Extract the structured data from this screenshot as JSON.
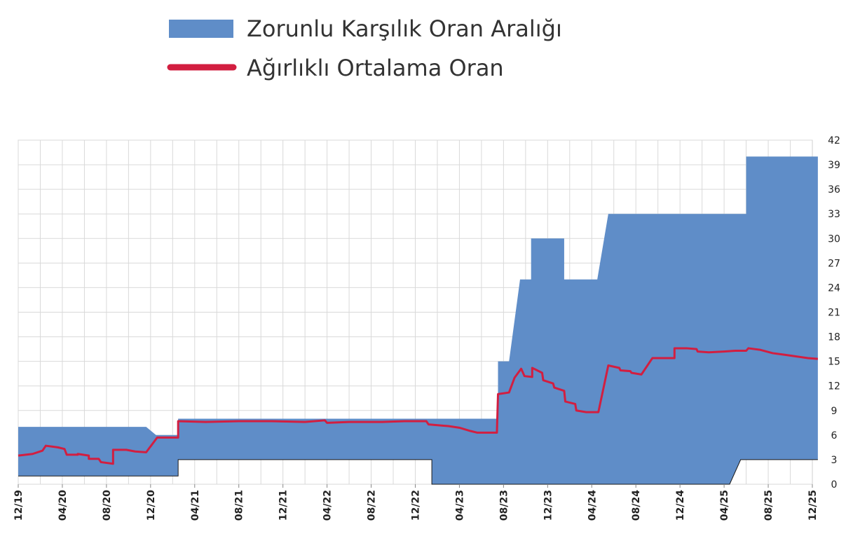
{
  "chart_data": {
    "type": "area",
    "title": "",
    "xlabel": "",
    "ylabel": "",
    "ylim": [
      0,
      42
    ],
    "yticks": [
      0,
      3,
      6,
      9,
      12,
      15,
      18,
      21,
      24,
      27,
      30,
      33,
      36,
      39,
      42
    ],
    "xticks": [
      "12/19",
      "04/20",
      "08/20",
      "12/20",
      "04/21",
      "08/21",
      "12/21",
      "04/22",
      "08/22",
      "12/22",
      "04/23",
      "08/23",
      "12/23",
      "04/24",
      "08/24",
      "12/24",
      "04/25",
      "08/25",
      "12/25"
    ],
    "grid": true,
    "legend_position": "top",
    "legend": [
      {
        "label": "Zorunlu Karşılık Oran Aralığı",
        "symbol": "rect",
        "color": "#5f8dc8"
      },
      {
        "label": "Ağırlıklı Ortalama Oran",
        "symbol": "line",
        "color": "#d21e40"
      }
    ],
    "series": [
      {
        "name": "Zorunlu Karşılık Oran Aralığı",
        "kind": "band",
        "color": "#5f8dc8",
        "upper": [
          [
            0,
            7
          ],
          [
            11.6,
            7
          ],
          [
            12.5,
            6
          ],
          [
            14.5,
            6
          ],
          [
            14.5,
            8
          ],
          [
            43.5,
            8
          ],
          [
            43.5,
            15
          ],
          [
            44.5,
            15
          ],
          [
            45.5,
            25
          ],
          [
            46.5,
            25
          ],
          [
            46.5,
            30
          ],
          [
            49.5,
            30
          ],
          [
            49.5,
            25
          ],
          [
            52.5,
            25
          ],
          [
            53.5,
            33
          ],
          [
            66,
            33
          ],
          [
            66,
            40
          ],
          [
            72.5,
            40
          ]
        ],
        "lower": [
          [
            0,
            1
          ],
          [
            14.5,
            1
          ],
          [
            14.5,
            3
          ],
          [
            37.5,
            3
          ],
          [
            37.5,
            0
          ],
          [
            64.5,
            0
          ],
          [
            65.5,
            3
          ],
          [
            72.5,
            3
          ]
        ]
      },
      {
        "name": "Ağırlıklı Ortalama Oran",
        "kind": "line",
        "color": "#d21e40",
        "points": [
          [
            0,
            3.5
          ],
          [
            1.3,
            3.7
          ],
          [
            2.2,
            4.1
          ],
          [
            2.5,
            4.7
          ],
          [
            3.6,
            4.5
          ],
          [
            4.2,
            4.3
          ],
          [
            4.4,
            3.6
          ],
          [
            5.4,
            3.6
          ],
          [
            5.4,
            3.7
          ],
          [
            6.4,
            3.5
          ],
          [
            6.4,
            3.1
          ],
          [
            7.3,
            3.1
          ],
          [
            7.5,
            2.7
          ],
          [
            8.6,
            2.5
          ],
          [
            8.6,
            4.2
          ],
          [
            9.8,
            4.2
          ],
          [
            10.6,
            4.0
          ],
          [
            11.6,
            3.9
          ],
          [
            12.6,
            5.7
          ],
          [
            14.5,
            5.7
          ],
          [
            14.5,
            7.7
          ],
          [
            17,
            7.6
          ],
          [
            20,
            7.7
          ],
          [
            23,
            7.7
          ],
          [
            26,
            7.6
          ],
          [
            27.8,
            7.8
          ],
          [
            28,
            7.5
          ],
          [
            30,
            7.6
          ],
          [
            33,
            7.6
          ],
          [
            35,
            7.7
          ],
          [
            37,
            7.7
          ],
          [
            37.2,
            7.3
          ],
          [
            39,
            7.1
          ],
          [
            40,
            6.9
          ],
          [
            41,
            6.5
          ],
          [
            41.6,
            6.3
          ],
          [
            43.4,
            6.3
          ],
          [
            43.5,
            11.0
          ],
          [
            44.5,
            11.2
          ],
          [
            45,
            13.0
          ],
          [
            45.6,
            14.1
          ],
          [
            45.9,
            13.2
          ],
          [
            46.6,
            13.1
          ],
          [
            46.6,
            14.2
          ],
          [
            47.5,
            13.6
          ],
          [
            47.6,
            12.7
          ],
          [
            48.5,
            12.3
          ],
          [
            48.6,
            11.8
          ],
          [
            49.5,
            11.4
          ],
          [
            49.6,
            10.1
          ],
          [
            50.5,
            9.8
          ],
          [
            50.6,
            9.0
          ],
          [
            51.5,
            8.8
          ],
          [
            52.6,
            8.8
          ],
          [
            53.5,
            14.5
          ],
          [
            54.5,
            14.2
          ],
          [
            54.6,
            13.9
          ],
          [
            55.5,
            13.8
          ],
          [
            55.6,
            13.6
          ],
          [
            56.5,
            13.4
          ],
          [
            57.5,
            15.4
          ],
          [
            59.5,
            15.4
          ],
          [
            59.5,
            16.6
          ],
          [
            60.6,
            16.6
          ],
          [
            61.5,
            16.5
          ],
          [
            61.6,
            16.2
          ],
          [
            62.6,
            16.1
          ],
          [
            64,
            16.2
          ],
          [
            65,
            16.3
          ],
          [
            66,
            16.3
          ],
          [
            66.2,
            16.6
          ],
          [
            67.3,
            16.4
          ],
          [
            68.4,
            16.0
          ],
          [
            69.5,
            15.8
          ],
          [
            71.6,
            15.4
          ],
          [
            72.5,
            15.3
          ]
        ]
      }
    ]
  }
}
